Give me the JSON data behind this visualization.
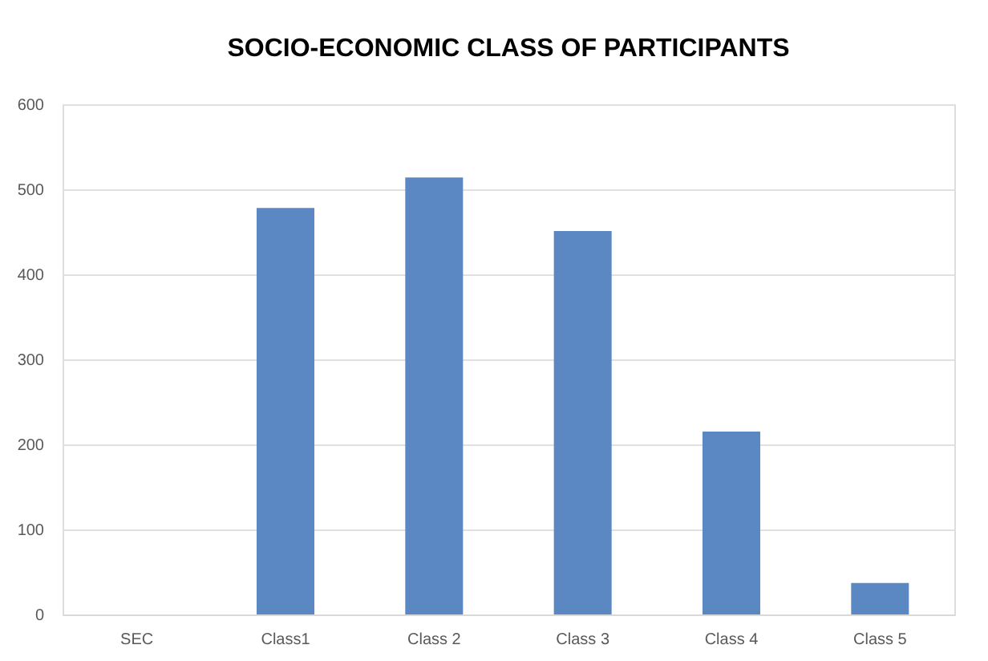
{
  "chart_data": {
    "type": "bar",
    "title": "SOCIO-ECONOMIC CLASS OF PARTICIPANTS",
    "categories": [
      "SEC",
      "Class1",
      "Class 2",
      "Class 3",
      "Class 4",
      "Class 5"
    ],
    "values": [
      null,
      478,
      514,
      451,
      215,
      37
    ],
    "color": "#5b87c2",
    "ylim": [
      0,
      600
    ],
    "yticks": [
      0,
      100,
      200,
      300,
      400,
      500,
      600
    ],
    "grid": "y"
  }
}
